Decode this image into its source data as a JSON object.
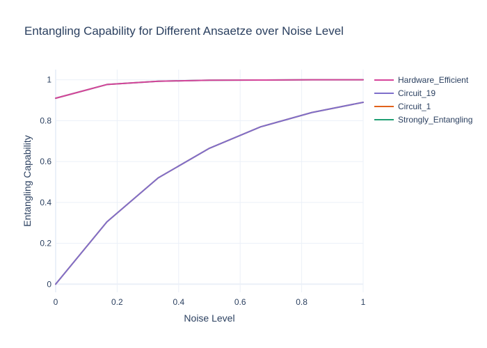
{
  "chart_data": {
    "type": "line",
    "title": "Entangling Capability for Different Ansaetze over Noise Level",
    "xlabel": "Noise Level",
    "ylabel": "Entangling Capability",
    "xlim": [
      0,
      1
    ],
    "ylim": [
      -0.04,
      1.05
    ],
    "x_ticks": [
      0,
      0.2,
      0.4,
      0.6,
      0.8,
      1
    ],
    "x_tick_labels": [
      "0",
      "0.2",
      "0.4",
      "0.6",
      "0.8",
      "1"
    ],
    "y_ticks": [
      0,
      0.2,
      0.4,
      0.6,
      0.8,
      1
    ],
    "y_tick_labels": [
      "0",
      "0.2",
      "0.4",
      "0.6",
      "0.8",
      "1"
    ],
    "grid": true,
    "legend_position": "right",
    "x": [
      0,
      0.1667,
      0.3333,
      0.5,
      0.6667,
      0.8333,
      1
    ],
    "series": [
      {
        "name": "Hardware_Efficient",
        "color": "#d6449a",
        "values": [
          0.91,
          0.977,
          0.993,
          0.998,
          0.999,
          1.0,
          1.0
        ]
      },
      {
        "name": "Circuit_19",
        "color": "#7e6fca",
        "values": [
          0.0,
          0.305,
          0.52,
          0.665,
          0.77,
          0.84,
          0.89
        ]
      },
      {
        "name": "Circuit_1",
        "color": "#e1621b",
        "values": [
          0.0,
          0.305,
          0.52,
          0.665,
          0.77,
          0.84,
          0.89
        ]
      },
      {
        "name": "Strongly_Entangling",
        "color": "#1f9f73",
        "values": [
          0.91,
          0.977,
          0.993,
          0.998,
          0.999,
          1.0,
          1.0
        ]
      }
    ]
  }
}
